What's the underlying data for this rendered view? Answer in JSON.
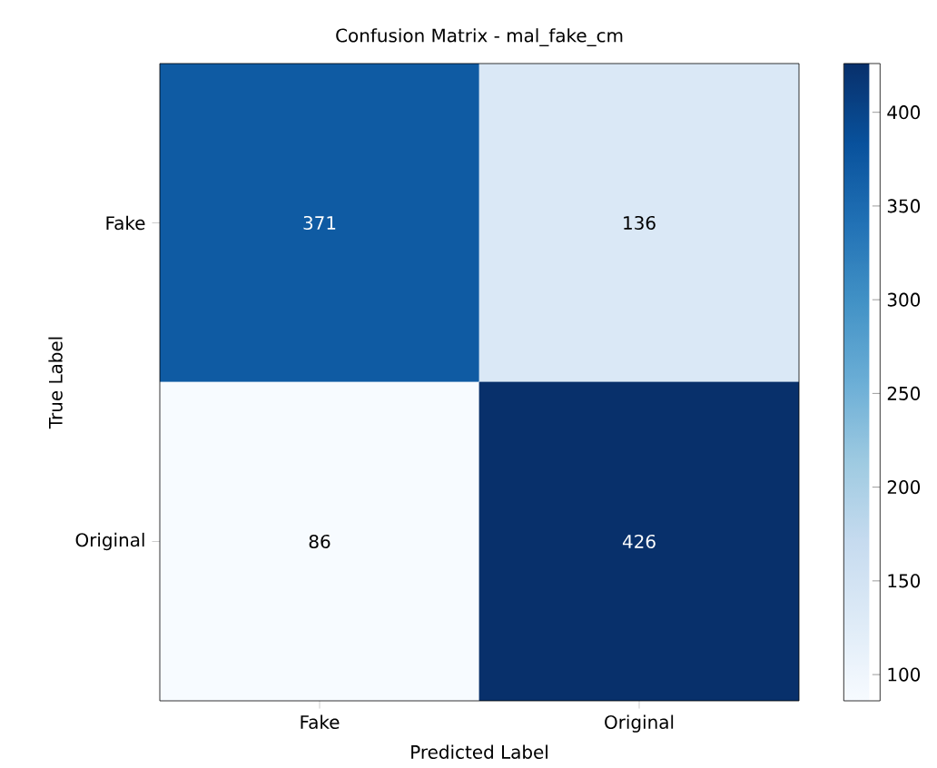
{
  "chart_data": {
    "type": "heatmap",
    "title": "Confusion Matrix - mal_fake_cm",
    "xlabel": "Predicted Label",
    "ylabel": "True Label",
    "categories": [
      "Fake",
      "Original"
    ],
    "y_categories": [
      "Fake",
      "Original"
    ],
    "cells": [
      [
        371,
        136
      ],
      [
        86,
        426
      ]
    ],
    "clim": [
      86,
      426
    ],
    "cticks": [
      100,
      150,
      200,
      250,
      300,
      350,
      400
    ],
    "data_labels": true
  }
}
